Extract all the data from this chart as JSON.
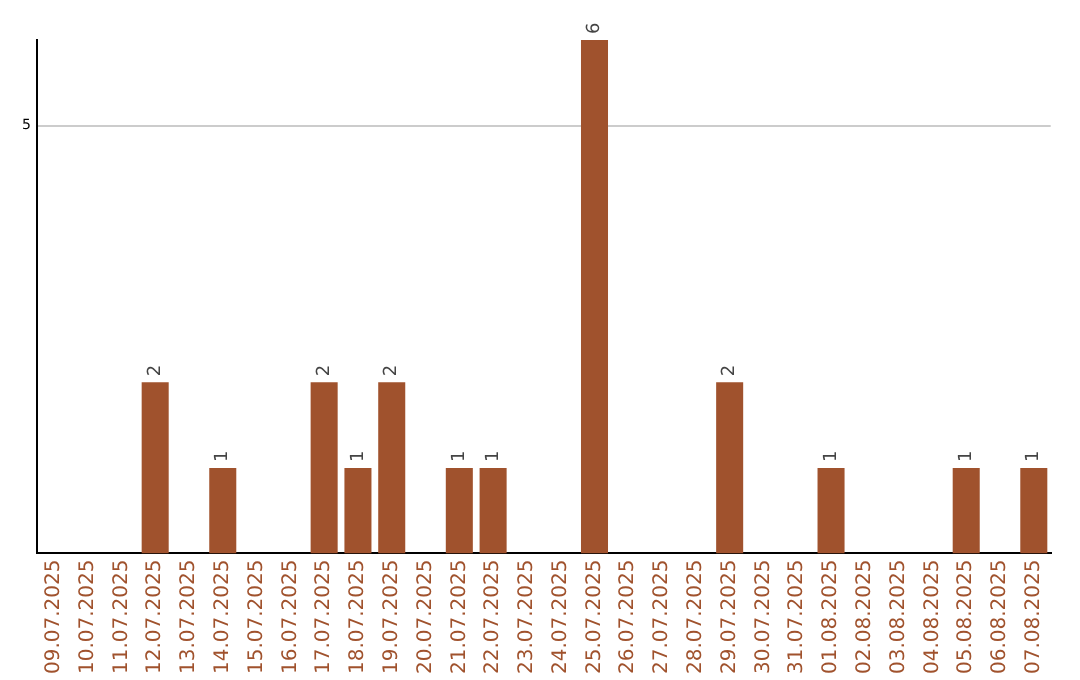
{
  "chart_data": {
    "type": "bar",
    "categories": [
      "09.07.2025",
      "10.07.2025",
      "11.07.2025",
      "12.07.2025",
      "13.07.2025",
      "14.07.2025",
      "15.07.2025",
      "16.07.2025",
      "17.07.2025",
      "18.07.2025",
      "19.07.2025",
      "20.07.2025",
      "21.07.2025",
      "22.07.2025",
      "23.07.2025",
      "24.07.2025",
      "25.07.2025",
      "26.07.2025",
      "27.07.2025",
      "28.07.2025",
      "29.07.2025",
      "30.07.2025",
      "31.07.2025",
      "01.08.2025",
      "02.08.2025",
      "03.08.2025",
      "04.08.2025",
      "05.08.2025",
      "06.08.2025",
      "07.08.2025"
    ],
    "values": [
      0,
      0,
      0,
      2,
      0,
      1,
      0,
      0,
      2,
      1,
      2,
      0,
      1,
      1,
      0,
      0,
      6,
      0,
      0,
      0,
      2,
      0,
      0,
      1,
      0,
      0,
      0,
      1,
      0,
      1
    ],
    "value_labels": [
      null,
      null,
      null,
      "2",
      null,
      "1",
      null,
      null,
      "2",
      "1",
      "2",
      null,
      "1",
      "1",
      null,
      null,
      "6",
      null,
      null,
      null,
      "2",
      null,
      null,
      "1",
      null,
      null,
      null,
      "1",
      null,
      "1"
    ],
    "color": "#a0522d",
    "ylim": [
      0,
      6
    ],
    "yticks": [
      5
    ],
    "grid": "y",
    "legend": false
  }
}
